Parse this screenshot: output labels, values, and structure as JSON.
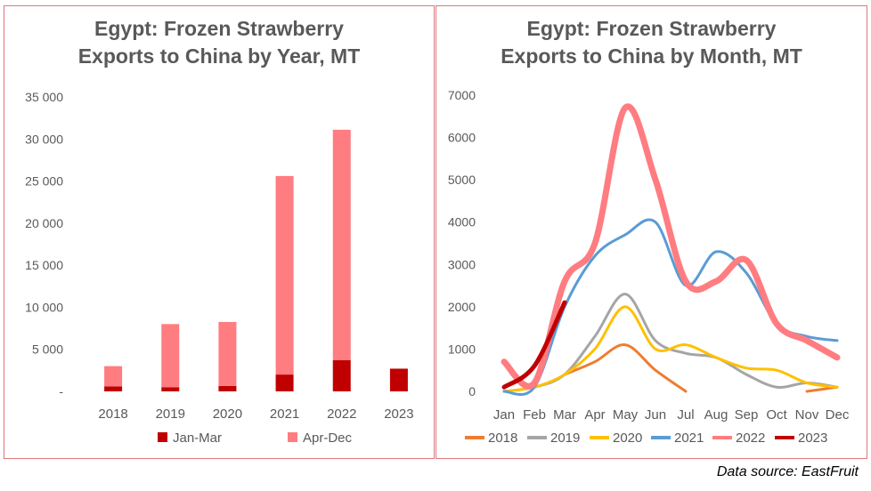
{
  "source": "Data source: EastFruit",
  "chart_data": [
    {
      "type": "bar",
      "stacked": true,
      "title_line1": "Egypt: Frozen Strawberry",
      "title_line2": "Exports to China by Year, MT",
      "categories": [
        "2018",
        "2019",
        "2020",
        "2021",
        "2022",
        "2023"
      ],
      "series": [
        {
          "name": "Jan-Mar",
          "color": "#c00000",
          "values": [
            600,
            500,
            650,
            2000,
            3700,
            2700
          ]
        },
        {
          "name": "Apr-Dec",
          "color": "#ff7c80",
          "values": [
            2400,
            7500,
            7600,
            23600,
            27400,
            0
          ]
        }
      ],
      "ylim": [
        0,
        35000
      ],
      "yticks": [
        0,
        5000,
        10000,
        15000,
        20000,
        25000,
        30000,
        35000
      ],
      "ytick_labels": [
        "-",
        "5 000",
        "10 000",
        "15 000",
        "20 000",
        "25 000",
        "30 000",
        "35 000"
      ],
      "legend_position": "bottom"
    },
    {
      "type": "line",
      "smooth": true,
      "title_line1": "Egypt: Frozen Strawberry",
      "title_line2": "Exports to China by Month, MT",
      "categories": [
        "Jan",
        "Feb",
        "Mar",
        "Apr",
        "May",
        "Jun",
        "Jul",
        "Aug",
        "Sep",
        "Oct",
        "Nov",
        "Dec"
      ],
      "series": [
        {
          "name": "2018",
          "color": "#ed7d31",
          "values": [
            null,
            null,
            400,
            700,
            1100,
            500,
            0,
            null,
            null,
            null,
            0,
            100
          ]
        },
        {
          "name": "2019",
          "color": "#a5a5a5",
          "values": [
            0,
            100,
            400,
            1300,
            2300,
            1200,
            900,
            800,
            400,
            100,
            200,
            100
          ]
        },
        {
          "name": "2020",
          "color": "#ffc000",
          "values": [
            0,
            100,
            400,
            1000,
            2000,
            1000,
            1100,
            800,
            550,
            500,
            200,
            100
          ]
        },
        {
          "name": "2021",
          "color": "#5b9bd5",
          "values": [
            0,
            100,
            2000,
            3200,
            3700,
            4000,
            2500,
            3300,
            2800,
            1600,
            1300,
            1200
          ]
        },
        {
          "name": "2022",
          "color": "#ff7c80",
          "values": [
            700,
            200,
            2600,
            3500,
            6700,
            5000,
            2600,
            2600,
            3100,
            1600,
            1200,
            800
          ]
        },
        {
          "name": "2023",
          "color": "#c00000",
          "values": [
            100,
            600,
            2100,
            null,
            null,
            null,
            null,
            null,
            null,
            null,
            null,
            null
          ]
        }
      ],
      "ylim": [
        0,
        7000
      ],
      "yticks": [
        0,
        1000,
        2000,
        3000,
        4000,
        5000,
        6000,
        7000
      ],
      "legend_position": "bottom"
    }
  ]
}
